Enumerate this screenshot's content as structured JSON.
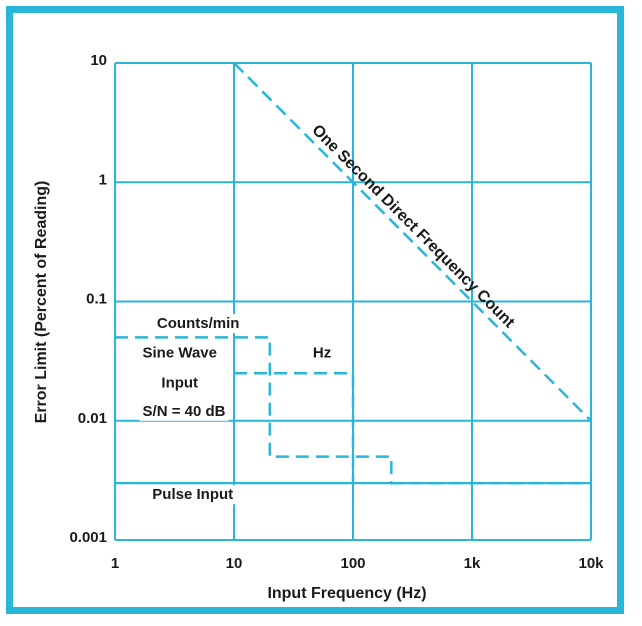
{
  "chart_data": {
    "type": "line",
    "title": "",
    "xlabel": "Input Frequency (Hz)",
    "ylabel": "Error Limit (Percent of Reading)",
    "x_scale": "log",
    "y_scale": "log",
    "xlim": [
      1,
      10000
    ],
    "ylim": [
      0.001,
      10
    ],
    "grid": true,
    "x_ticks": [
      {
        "value": 1,
        "label": "1"
      },
      {
        "value": 10,
        "label": "10"
      },
      {
        "value": 100,
        "label": "100"
      },
      {
        "value": 1000,
        "label": "1k"
      },
      {
        "value": 10000,
        "label": "10k"
      }
    ],
    "y_ticks": [
      {
        "value": 0.001,
        "label": "0.001"
      },
      {
        "value": 0.01,
        "label": "0.01"
      },
      {
        "value": 0.1,
        "label": "0.1"
      },
      {
        "value": 1,
        "label": "1"
      },
      {
        "value": 10,
        "label": "10"
      }
    ],
    "series": [
      {
        "name": "One Second Direct Frequency Count",
        "style": "dashed",
        "x": [
          10,
          10000
        ],
        "y": [
          10,
          0.01
        ]
      },
      {
        "name": "Counts/min",
        "style": "dashed",
        "x": [
          1,
          20,
          20,
          210,
          210,
          10000
        ],
        "y": [
          0.05,
          0.05,
          0.005,
          0.005,
          0.003,
          0.003
        ]
      },
      {
        "name": "Hz",
        "style": "dashed",
        "x": [
          10,
          100,
          100
        ],
        "y": [
          0.025,
          0.025,
          0.003
        ]
      },
      {
        "name": "Pulse Input",
        "style": "solid",
        "x": [
          1,
          10000
        ],
        "y": [
          0.003,
          0.003
        ]
      }
    ],
    "annotations": [
      {
        "text": "Counts/min",
        "x": 5,
        "y": 0.06
      },
      {
        "text": "Sine Wave",
        "x": 3.5,
        "y": 0.034
      },
      {
        "text": "Input",
        "x": 3.5,
        "y": 0.019
      },
      {
        "text": "S/N = 40 dB",
        "x": 3.8,
        "y": 0.011
      },
      {
        "text": "Hz",
        "x": 55,
        "y": 0.034
      },
      {
        "text": "Pulse Input",
        "x": 4.5,
        "y": 0.0022
      },
      {
        "text": "One Second Direct Frequency Count",
        "x": 300,
        "y": 0.4,
        "rotated": true
      }
    ],
    "colors": {
      "lines": "#29b6d8",
      "border": "#29b6d8",
      "text": "#1a1a1a"
    }
  }
}
